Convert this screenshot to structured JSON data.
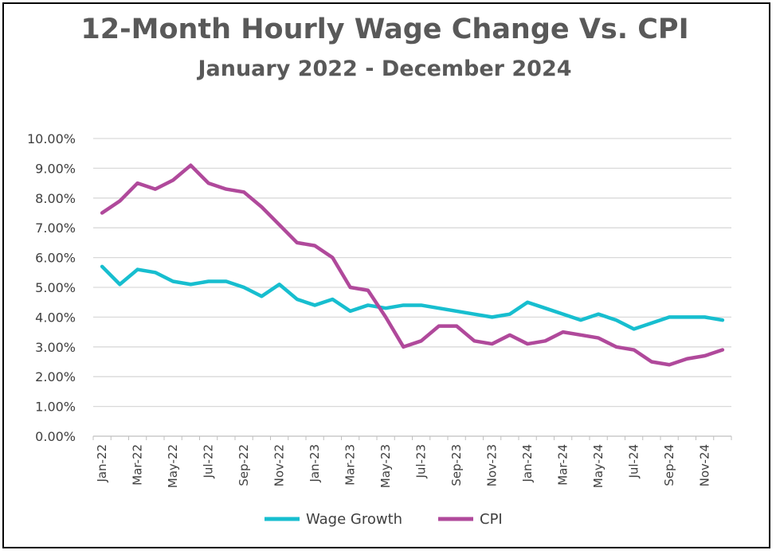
{
  "chart_data": {
    "type": "line",
    "title": "12-Month Hourly Wage Change Vs. CPI",
    "subtitle": "January 2022 - December 2024",
    "xlabel": "",
    "ylabel": "",
    "ylim": [
      0,
      10
    ],
    "y_ticks": [
      "0.00%",
      "1.00%",
      "2.00%",
      "3.00%",
      "4.00%",
      "5.00%",
      "6.00%",
      "7.00%",
      "8.00%",
      "9.00%",
      "10.00%"
    ],
    "x_tick_labels": [
      "Jan-22",
      "Mar-22",
      "May-22",
      "Jul-22",
      "Sep-22",
      "Nov-22",
      "Jan-23",
      "Mar-23",
      "May-23",
      "Jul-23",
      "Sep-23",
      "Nov-23",
      "Jan-24",
      "Mar-24",
      "May-24",
      "Jul-24",
      "Sep-24",
      "Nov-24"
    ],
    "categories": [
      "Jan-22",
      "Feb-22",
      "Mar-22",
      "Apr-22",
      "May-22",
      "Jun-22",
      "Jul-22",
      "Aug-22",
      "Sep-22",
      "Oct-22",
      "Nov-22",
      "Dec-22",
      "Jan-23",
      "Feb-23",
      "Mar-23",
      "Apr-23",
      "May-23",
      "Jun-23",
      "Jul-23",
      "Aug-23",
      "Sep-23",
      "Oct-23",
      "Nov-23",
      "Dec-23",
      "Jan-24",
      "Feb-24",
      "Mar-24",
      "Apr-24",
      "May-24",
      "Jun-24",
      "Jul-24",
      "Aug-24",
      "Sep-24",
      "Oct-24",
      "Nov-24",
      "Dec-24"
    ],
    "grid": true,
    "legend_position": "bottom",
    "series": [
      {
        "name": "Wage Growth",
        "color": "#17becf",
        "values": [
          5.7,
          5.1,
          5.6,
          5.5,
          5.2,
          5.1,
          5.2,
          5.2,
          5.0,
          4.7,
          5.1,
          4.6,
          4.4,
          4.6,
          4.2,
          4.4,
          4.3,
          4.4,
          4.4,
          4.3,
          4.2,
          4.1,
          4.0,
          4.1,
          4.5,
          4.3,
          4.1,
          3.9,
          4.1,
          3.9,
          3.6,
          3.8,
          4.0,
          4.0,
          4.0,
          3.9
        ]
      },
      {
        "name": "CPI",
        "color": "#b0499b",
        "values": [
          7.5,
          7.9,
          8.5,
          8.3,
          8.6,
          9.1,
          8.5,
          8.3,
          8.2,
          7.7,
          7.1,
          6.5,
          6.4,
          6.0,
          5.0,
          4.9,
          4.0,
          3.0,
          3.2,
          3.7,
          3.7,
          3.2,
          3.1,
          3.4,
          3.1,
          3.2,
          3.5,
          3.4,
          3.3,
          3.0,
          2.9,
          2.5,
          2.4,
          2.6,
          2.7,
          2.9
        ]
      }
    ]
  }
}
